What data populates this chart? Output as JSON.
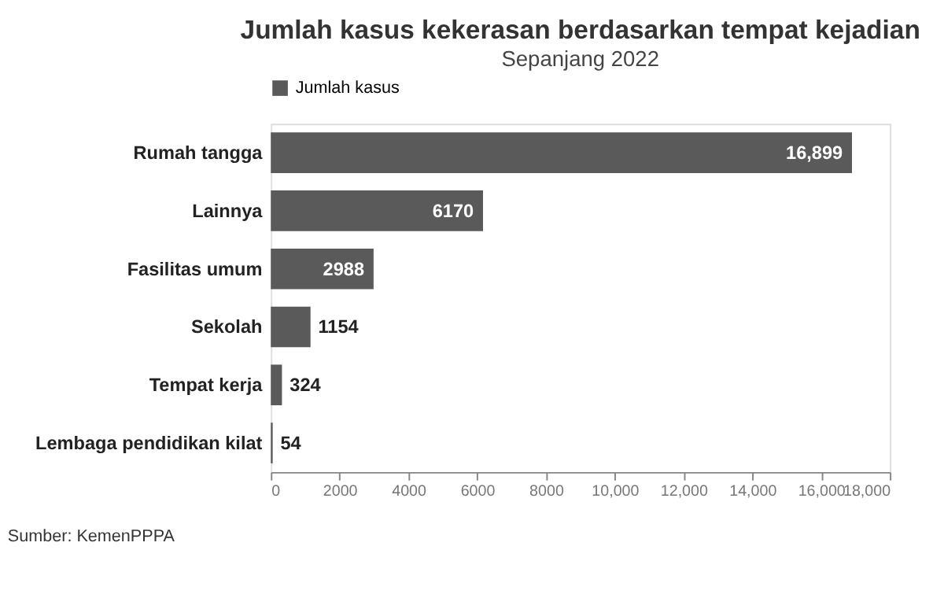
{
  "chart_data": {
    "type": "bar",
    "orientation": "horizontal",
    "title": "Jumlah kasus kekerasan berdasarkan tempat kejadian",
    "subtitle": "Sepanjang 2022",
    "categories": [
      "Rumah tangga",
      "Lainnya",
      "Fasilitas umum",
      "Sekolah",
      "Tempat kerja",
      "Lembaga pendidikan kilat"
    ],
    "series": [
      {
        "name": "Jumlah kasus",
        "color": "#5a5a5a",
        "values": [
          16899,
          6170,
          2988,
          1154,
          324,
          54
        ],
        "value_labels": [
          "16,899",
          "6170",
          "2988",
          "1154",
          "324",
          "54"
        ]
      }
    ],
    "xlim": [
      0,
      18000
    ],
    "xticks": [
      0,
      2000,
      4000,
      6000,
      8000,
      {
        "value": 10000,
        "label": "10,000"
      },
      {
        "value": 12000,
        "label": "12,000"
      },
      {
        "value": 14000,
        "label": "14,000"
      },
      {
        "value": 16000,
        "label": "16,000"
      },
      {
        "value": 18000,
        "label": "18,000"
      }
    ],
    "legend": "top",
    "grid": false,
    "annotations": [
      "Sumber: KemenPPPA"
    ]
  }
}
